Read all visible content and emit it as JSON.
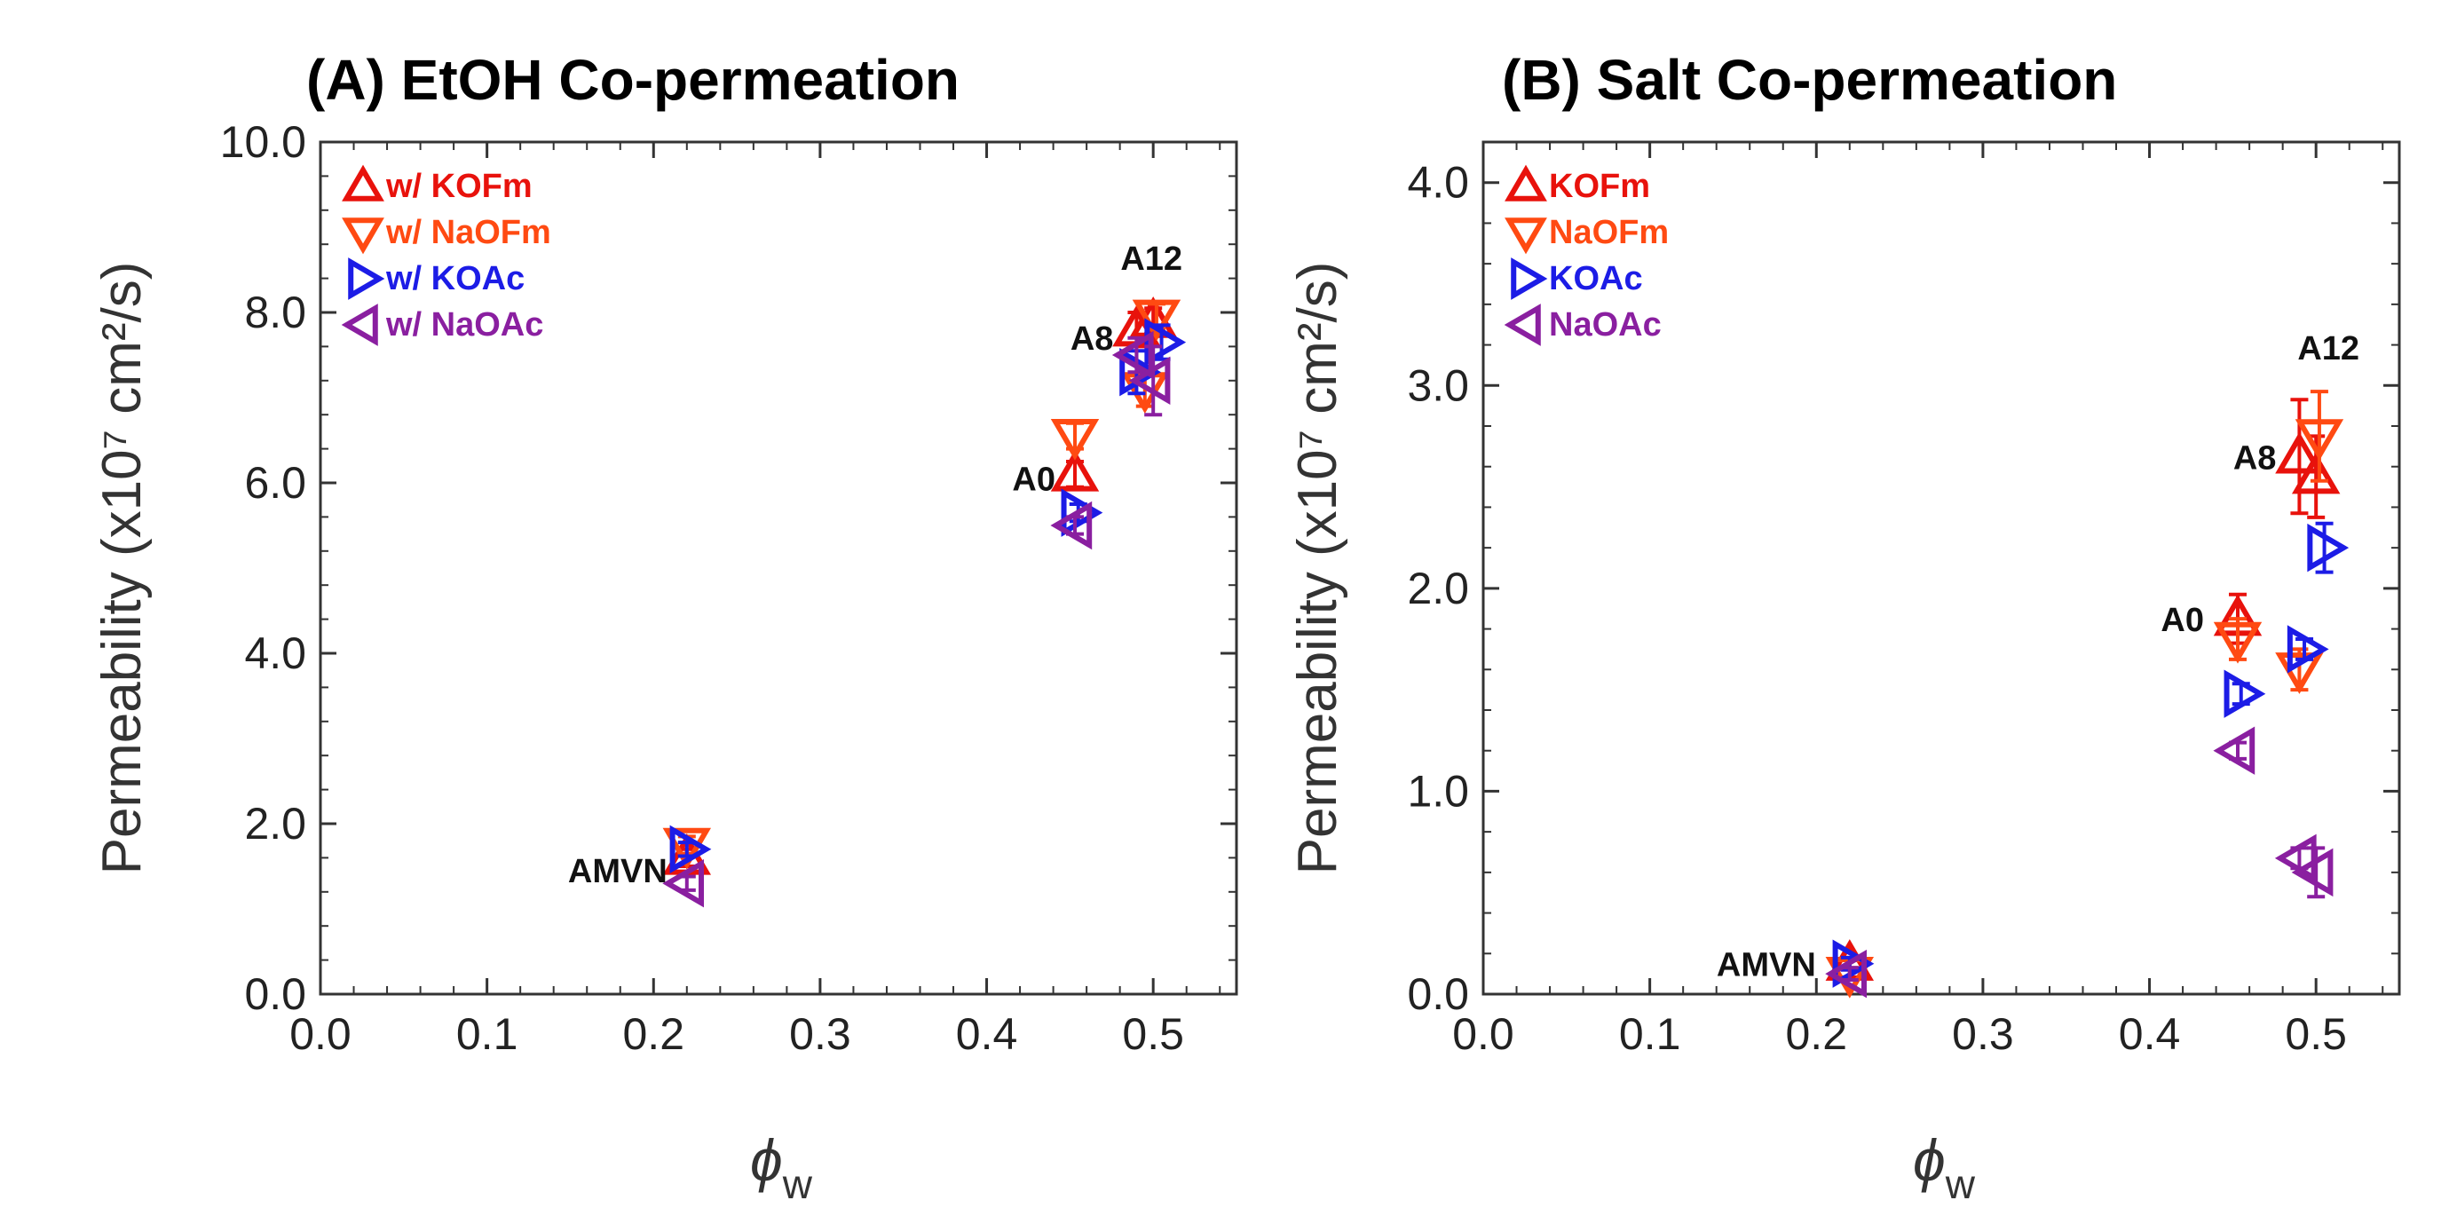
{
  "chart_data": [
    {
      "type": "scatter",
      "title": "(A) EtOH Co-permeation",
      "xlabel": "ϕ",
      "xlabel_subscript": "w",
      "ylabel": "Permeability (x10⁷ cm²/s)",
      "xlim": [
        0.0,
        0.55
      ],
      "ylim": [
        0.0,
        10.0
      ],
      "xticks": [
        "0.0",
        "0.1",
        "0.2",
        "0.3",
        "0.4",
        "0.5"
      ],
      "xtick_values": [
        0.0,
        0.1,
        0.2,
        0.3,
        0.4,
        0.5
      ],
      "yticks": [
        "0.0",
        "2.0",
        "4.0",
        "6.0",
        "8.0",
        "10.0"
      ],
      "ytick_values": [
        0.0,
        2.0,
        4.0,
        6.0,
        8.0,
        10.0
      ],
      "legend_position": "top-left",
      "series": [
        {
          "name": "w/ KOFm",
          "marker": "triangle-up",
          "color": "#e8120c",
          "points": [
            {
              "x": 0.22,
              "y": 1.6,
              "err": 0.1
            },
            {
              "x": 0.453,
              "y": 6.1,
              "err": 0.15
            },
            {
              "x": 0.49,
              "y": 7.8,
              "err": 0.2
            },
            {
              "x": 0.5,
              "y": 7.9,
              "err": 0.15
            }
          ]
        },
        {
          "name": "w/ NaOFm",
          "marker": "triangle-down",
          "color": "#ff4a12",
          "points": [
            {
              "x": 0.22,
              "y": 1.75,
              "err": 0.1
            },
            {
              "x": 0.453,
              "y": 6.55,
              "err": 0.15
            },
            {
              "x": 0.495,
              "y": 7.1,
              "err": 0.2
            },
            {
              "x": 0.502,
              "y": 7.95,
              "err": 0.15
            }
          ]
        },
        {
          "name": "w/ KOAc",
          "marker": "triangle-right",
          "color": "#1c1ce6",
          "points": [
            {
              "x": 0.22,
              "y": 1.7,
              "err": 0.08
            },
            {
              "x": 0.455,
              "y": 5.65,
              "err": 0.1
            },
            {
              "x": 0.49,
              "y": 7.3,
              "err": 0.25
            },
            {
              "x": 0.505,
              "y": 7.65,
              "err": 0.2
            }
          ]
        },
        {
          "name": "w/ NaOAc",
          "marker": "triangle-left",
          "color": "#8a1fa0",
          "points": [
            {
              "x": 0.22,
              "y": 1.3,
              "err": 0.08
            },
            {
              "x": 0.453,
              "y": 5.5,
              "err": 0.1
            },
            {
              "x": 0.49,
              "y": 7.5,
              "err": 0.2
            },
            {
              "x": 0.5,
              "y": 7.2,
              "err": 0.4
            }
          ]
        }
      ],
      "annotations": [
        {
          "text": "AMVN",
          "x": 0.22,
          "y": 1.5
        },
        {
          "text": "A0",
          "x": 0.453,
          "y": 6.1
        },
        {
          "text": "A8",
          "x": 0.49,
          "y": 7.75
        },
        {
          "text": "A12",
          "x": 0.5,
          "y": 8.5
        }
      ]
    },
    {
      "type": "scatter",
      "title": "(B) Salt Co-permeation",
      "xlabel": "ϕ",
      "xlabel_subscript": "w",
      "ylabel": "Permeability (x10⁷ cm²/s)",
      "xlim": [
        0.0,
        0.55
      ],
      "ylim": [
        0.0,
        4.2
      ],
      "xticks": [
        "0.0",
        "0.1",
        "0.2",
        "0.3",
        "0.4",
        "0.5"
      ],
      "xtick_values": [
        0.0,
        0.1,
        0.2,
        0.3,
        0.4,
        0.5
      ],
      "yticks": [
        "0.0",
        "1.0",
        "2.0",
        "3.0",
        "4.0"
      ],
      "ytick_values": [
        0.0,
        1.0,
        2.0,
        3.0,
        4.0
      ],
      "legend_position": "top-left",
      "series": [
        {
          "name": "KOFm",
          "marker": "triangle-up",
          "color": "#e8120c",
          "points": [
            {
              "x": 0.22,
              "y": 0.15,
              "err": 0.03
            },
            {
              "x": 0.453,
              "y": 1.85,
              "err": 0.12
            },
            {
              "x": 0.49,
              "y": 2.65,
              "err": 0.28
            },
            {
              "x": 0.5,
              "y": 2.55,
              "err": 0.2
            }
          ]
        },
        {
          "name": "NaOFm",
          "marker": "triangle-down",
          "color": "#ff4a12",
          "points": [
            {
              "x": 0.22,
              "y": 0.1,
              "err": 0.03
            },
            {
              "x": 0.453,
              "y": 1.75,
              "err": 0.1
            },
            {
              "x": 0.49,
              "y": 1.6,
              "err": 0.1
            },
            {
              "x": 0.502,
              "y": 2.75,
              "err": 0.22
            }
          ]
        },
        {
          "name": "KOAc",
          "marker": "triangle-right",
          "color": "#1c1ce6",
          "points": [
            {
              "x": 0.22,
              "y": 0.15,
              "err": 0.03
            },
            {
              "x": 0.455,
              "y": 1.48,
              "err": 0.05
            },
            {
              "x": 0.493,
              "y": 1.7,
              "err": 0.05
            },
            {
              "x": 0.505,
              "y": 2.2,
              "err": 0.12
            }
          ]
        },
        {
          "name": "NaOAc",
          "marker": "triangle-left",
          "color": "#8a1fa0",
          "points": [
            {
              "x": 0.22,
              "y": 0.1,
              "err": 0.03
            },
            {
              "x": 0.453,
              "y": 1.2,
              "err": 0.04
            },
            {
              "x": 0.49,
              "y": 0.67,
              "err": 0.05
            },
            {
              "x": 0.5,
              "y": 0.6,
              "err": 0.12
            }
          ]
        }
      ],
      "annotations": [
        {
          "text": "AMVN",
          "x": 0.22,
          "y": 0.15
        },
        {
          "text": "A0",
          "x": 0.453,
          "y": 1.85
        },
        {
          "text": "A8",
          "x": 0.49,
          "y": 2.65
        },
        {
          "text": "A12",
          "x": 0.5,
          "y": 3.05
        }
      ]
    }
  ]
}
